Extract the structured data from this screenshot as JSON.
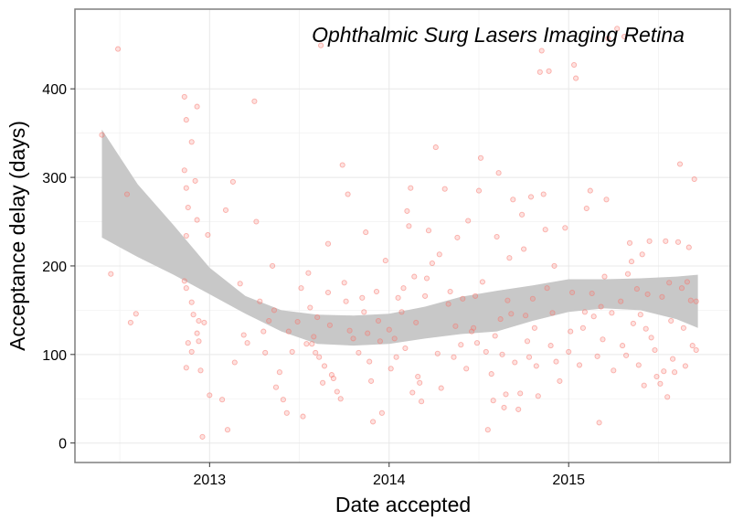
{
  "chart_data": {
    "type": "scatter",
    "title": "Ophthalmic Surg Lasers Imaging Retina",
    "xlabel": "Date accepted",
    "ylabel": "Acceptance delay (days)",
    "x_ticks": [
      "2013",
      "2014",
      "2015"
    ],
    "y_ticks": [
      0,
      100,
      200,
      300,
      400
    ],
    "xlim": [
      2012.25,
      2015.9
    ],
    "ylim": [
      -22,
      490
    ],
    "grid": true,
    "point_color": "#f8766d",
    "band_color": "#c8c8c8",
    "smooth_band": [
      {
        "x": 2012.4,
        "lower": 232,
        "upper": 354
      },
      {
        "x": 2012.6,
        "lower": 210,
        "upper": 292
      },
      {
        "x": 2012.8,
        "lower": 190,
        "upper": 246
      },
      {
        "x": 2013.0,
        "lower": 168,
        "upper": 198
      },
      {
        "x": 2013.2,
        "lower": 146,
        "upper": 166
      },
      {
        "x": 2013.4,
        "lower": 126,
        "upper": 150
      },
      {
        "x": 2013.6,
        "lower": 112,
        "upper": 145
      },
      {
        "x": 2013.8,
        "lower": 110,
        "upper": 144
      },
      {
        "x": 2014.0,
        "lower": 112,
        "upper": 146
      },
      {
        "x": 2014.2,
        "lower": 118,
        "upper": 154
      },
      {
        "x": 2014.4,
        "lower": 123,
        "upper": 165
      },
      {
        "x": 2014.6,
        "lower": 126,
        "upper": 172
      },
      {
        "x": 2014.8,
        "lower": 138,
        "upper": 178
      },
      {
        "x": 2015.0,
        "lower": 148,
        "upper": 185
      },
      {
        "x": 2015.2,
        "lower": 152,
        "upper": 185
      },
      {
        "x": 2015.4,
        "lower": 150,
        "upper": 186
      },
      {
        "x": 2015.6,
        "lower": 140,
        "upper": 188
      },
      {
        "x": 2015.72,
        "lower": 130,
        "upper": 190
      }
    ],
    "points": [
      [
        2012.4,
        348
      ],
      [
        2012.45,
        191
      ],
      [
        2012.49,
        445
      ],
      [
        2012.54,
        281
      ],
      [
        2012.56,
        136
      ],
      [
        2012.59,
        146
      ],
      [
        2012.86,
        391
      ],
      [
        2012.87,
        365
      ],
      [
        2012.86,
        308
      ],
      [
        2012.87,
        288
      ],
      [
        2012.88,
        266
      ],
      [
        2012.87,
        234
      ],
      [
        2012.9,
        340
      ],
      [
        2012.93,
        380
      ],
      [
        2012.92,
        296
      ],
      [
        2012.93,
        252
      ],
      [
        2012.86,
        183
      ],
      [
        2012.87,
        175
      ],
      [
        2012.9,
        159
      ],
      [
        2012.91,
        145
      ],
      [
        2012.94,
        138
      ],
      [
        2012.97,
        136
      ],
      [
        2012.88,
        113
      ],
      [
        2012.9,
        103
      ],
      [
        2012.93,
        124
      ],
      [
        2012.94,
        115
      ],
      [
        2012.87,
        85
      ],
      [
        2012.95,
        82
      ],
      [
        2012.99,
        235
      ],
      [
        2013.0,
        54
      ],
      [
        2012.96,
        7
      ],
      [
        2013.07,
        49
      ],
      [
        2013.1,
        15
      ],
      [
        2013.09,
        263
      ],
      [
        2013.13,
        295
      ],
      [
        2013.14,
        91
      ],
      [
        2013.17,
        180
      ],
      [
        2013.19,
        122
      ],
      [
        2013.21,
        113
      ],
      [
        2013.25,
        386
      ],
      [
        2013.26,
        250
      ],
      [
        2013.28,
        160
      ],
      [
        2013.3,
        126
      ],
      [
        2013.33,
        138
      ],
      [
        2013.31,
        102
      ],
      [
        2013.35,
        200
      ],
      [
        2013.36,
        150
      ],
      [
        2013.37,
        63
      ],
      [
        2013.39,
        80
      ],
      [
        2013.41,
        49
      ],
      [
        2013.43,
        34
      ],
      [
        2013.44,
        126
      ],
      [
        2013.46,
        103
      ],
      [
        2013.49,
        137
      ],
      [
        2013.51,
        175
      ],
      [
        2013.52,
        30
      ],
      [
        2013.54,
        112
      ],
      [
        2013.55,
        192
      ],
      [
        2013.56,
        153
      ],
      [
        2013.57,
        112
      ],
      [
        2013.58,
        120
      ],
      [
        2013.59,
        102
      ],
      [
        2013.6,
        142
      ],
      [
        2013.61,
        97
      ],
      [
        2013.62,
        449
      ],
      [
        2013.63,
        68
      ],
      [
        2013.64,
        87
      ],
      [
        2013.66,
        225
      ],
      [
        2013.66,
        170
      ],
      [
        2013.67,
        133
      ],
      [
        2013.68,
        77
      ],
      [
        2013.69,
        73
      ],
      [
        2013.71,
        58
      ],
      [
        2013.73,
        50
      ],
      [
        2013.74,
        314
      ],
      [
        2013.75,
        181
      ],
      [
        2013.76,
        160
      ],
      [
        2013.77,
        281
      ],
      [
        2013.78,
        127
      ],
      [
        2013.8,
        118
      ],
      [
        2013.83,
        102
      ],
      [
        2013.85,
        164
      ],
      [
        2013.86,
        148
      ],
      [
        2013.87,
        238
      ],
      [
        2013.88,
        124
      ],
      [
        2013.89,
        92
      ],
      [
        2013.9,
        70
      ],
      [
        2013.91,
        24
      ],
      [
        2013.93,
        171
      ],
      [
        2013.94,
        138
      ],
      [
        2013.95,
        115
      ],
      [
        2013.96,
        34
      ],
      [
        2013.98,
        206
      ],
      [
        2014.0,
        128
      ],
      [
        2014.01,
        84
      ],
      [
        2014.03,
        118
      ],
      [
        2014.04,
        97
      ],
      [
        2014.05,
        164
      ],
      [
        2014.07,
        148
      ],
      [
        2014.08,
        175
      ],
      [
        2014.09,
        107
      ],
      [
        2014.1,
        262
      ],
      [
        2014.11,
        245
      ],
      [
        2014.12,
        288
      ],
      [
        2014.13,
        57
      ],
      [
        2014.14,
        188
      ],
      [
        2014.15,
        136
      ],
      [
        2014.16,
        75
      ],
      [
        2014.17,
        68
      ],
      [
        2014.18,
        47
      ],
      [
        2014.2,
        166
      ],
      [
        2014.21,
        186
      ],
      [
        2014.22,
        240
      ],
      [
        2014.24,
        203
      ],
      [
        2014.26,
        334
      ],
      [
        2014.27,
        101
      ],
      [
        2014.28,
        213
      ],
      [
        2014.29,
        62
      ],
      [
        2014.31,
        287
      ],
      [
        2014.33,
        157
      ],
      [
        2014.34,
        171
      ],
      [
        2014.36,
        97
      ],
      [
        2014.37,
        132
      ],
      [
        2014.38,
        232
      ],
      [
        2014.4,
        111
      ],
      [
        2014.41,
        163
      ],
      [
        2014.43,
        84
      ],
      [
        2014.44,
        251
      ],
      [
        2014.46,
        126
      ],
      [
        2014.47,
        130
      ],
      [
        2014.48,
        166
      ],
      [
        2014.49,
        113
      ],
      [
        2014.5,
        285
      ],
      [
        2014.51,
        322
      ],
      [
        2014.52,
        182
      ],
      [
        2014.54,
        103
      ],
      [
        2014.55,
        15
      ],
      [
        2014.57,
        78
      ],
      [
        2014.58,
        48
      ],
      [
        2014.59,
        121
      ],
      [
        2014.6,
        233
      ],
      [
        2014.61,
        305
      ],
      [
        2014.62,
        140
      ],
      [
        2014.63,
        100
      ],
      [
        2014.64,
        40
      ],
      [
        2014.65,
        55
      ],
      [
        2014.66,
        161
      ],
      [
        2014.67,
        209
      ],
      [
        2014.68,
        146
      ],
      [
        2014.69,
        275
      ],
      [
        2014.7,
        91
      ],
      [
        2014.72,
        38
      ],
      [
        2014.73,
        56
      ],
      [
        2014.74,
        258
      ],
      [
        2014.75,
        219
      ],
      [
        2014.76,
        144
      ],
      [
        2014.77,
        115
      ],
      [
        2014.78,
        97
      ],
      [
        2014.79,
        278
      ],
      [
        2014.8,
        163
      ],
      [
        2014.81,
        130
      ],
      [
        2014.82,
        87
      ],
      [
        2014.83,
        53
      ],
      [
        2014.84,
        419
      ],
      [
        2014.85,
        443
      ],
      [
        2014.86,
        281
      ],
      [
        2014.87,
        241
      ],
      [
        2014.88,
        175
      ],
      [
        2014.89,
        420
      ],
      [
        2014.9,
        110
      ],
      [
        2014.91,
        147
      ],
      [
        2014.92,
        200
      ],
      [
        2014.93,
        92
      ],
      [
        2014.95,
        70
      ],
      [
        2014.98,
        243
      ],
      [
        2015.0,
        103
      ],
      [
        2015.01,
        126
      ],
      [
        2015.02,
        170
      ],
      [
        2015.03,
        427
      ],
      [
        2015.04,
        412
      ],
      [
        2015.06,
        88
      ],
      [
        2015.08,
        130
      ],
      [
        2015.09,
        148
      ],
      [
        2015.1,
        265
      ],
      [
        2015.12,
        285
      ],
      [
        2015.13,
        169
      ],
      [
        2015.14,
        143
      ],
      [
        2015.16,
        98
      ],
      [
        2015.17,
        23
      ],
      [
        2015.18,
        154
      ],
      [
        2015.19,
        117
      ],
      [
        2015.2,
        188
      ],
      [
        2015.21,
        275
      ],
      [
        2015.22,
        457
      ],
      [
        2015.24,
        147
      ],
      [
        2015.25,
        82
      ],
      [
        2015.27,
        468
      ],
      [
        2015.29,
        160
      ],
      [
        2015.3,
        110
      ],
      [
        2015.31,
        459
      ],
      [
        2015.32,
        99
      ],
      [
        2015.33,
        191
      ],
      [
        2015.34,
        226
      ],
      [
        2015.35,
        205
      ],
      [
        2015.36,
        135
      ],
      [
        2015.38,
        174
      ],
      [
        2015.39,
        88
      ],
      [
        2015.4,
        145
      ],
      [
        2015.41,
        213
      ],
      [
        2015.42,
        65
      ],
      [
        2015.43,
        129
      ],
      [
        2015.44,
        168
      ],
      [
        2015.45,
        228
      ],
      [
        2015.46,
        119
      ],
      [
        2015.48,
        105
      ],
      [
        2015.49,
        75
      ],
      [
        2015.51,
        67
      ],
      [
        2015.52,
        165
      ],
      [
        2015.53,
        81
      ],
      [
        2015.54,
        228
      ],
      [
        2015.55,
        52
      ],
      [
        2015.56,
        181
      ],
      [
        2015.57,
        138
      ],
      [
        2015.58,
        95
      ],
      [
        2015.59,
        80
      ],
      [
        2015.61,
        227
      ],
      [
        2015.62,
        315
      ],
      [
        2015.63,
        175
      ],
      [
        2015.64,
        130
      ],
      [
        2015.65,
        87
      ],
      [
        2015.66,
        182
      ],
      [
        2015.67,
        221
      ],
      [
        2015.68,
        161
      ],
      [
        2015.69,
        110
      ],
      [
        2015.7,
        298
      ],
      [
        2015.71,
        160
      ],
      [
        2015.71,
        105
      ]
    ]
  }
}
